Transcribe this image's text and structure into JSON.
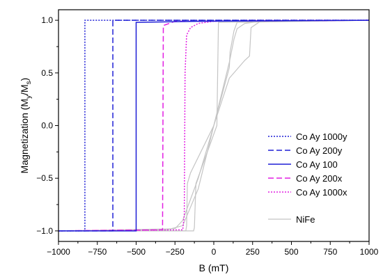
{
  "chart_data": {
    "type": "line",
    "xlabel": "B (mT)",
    "ylabel_main": "Magnetization (M",
    "ylabel_sub1": "y",
    "ylabel_mid": "/M",
    "ylabel_sub2": "s",
    "ylabel_end": ")",
    "xlim": [
      -1000,
      1000
    ],
    "ylim": [
      -1.1,
      1.1
    ],
    "x_ticks": [
      -1000,
      -750,
      -500,
      -250,
      0,
      250,
      500,
      750,
      1000
    ],
    "x_tick_labels": [
      "−1000",
      "−750",
      "−500",
      "−250",
      "0",
      "250",
      "500",
      "750",
      "1000"
    ],
    "y_ticks": [
      -1.0,
      -0.5,
      0.0,
      0.5,
      1.0
    ],
    "y_tick_labels": [
      "−1.0",
      "−0.5",
      "0.0",
      "0.5",
      "1.0"
    ],
    "grid": false,
    "legend_position": "right",
    "series": [
      {
        "name": "Co Ay 1000y",
        "color": "#1f1fd6",
        "dash": "2,2",
        "branches": [
          {
            "x": [
              -1000,
              -830,
              -830,
              1000
            ],
            "y": [
              -1.0,
              -1.0,
              1.0,
              1.0
            ]
          }
        ]
      },
      {
        "name": "Co Ay 200y",
        "color": "#1f1fd6",
        "dash": "8,4",
        "branches": [
          {
            "x": [
              -1000,
              -650,
              -650,
              1000
            ],
            "y": [
              -1.0,
              -1.0,
              1.0,
              1.0
            ]
          }
        ]
      },
      {
        "name": "Co Ay 100",
        "color": "#1f1fd6",
        "dash": "",
        "branches": [
          {
            "x": [
              -1000,
              -500,
              -500,
              -100,
              1000
            ],
            "y": [
              -1.0,
              -1.0,
              0.98,
              0.99,
              1.0
            ]
          }
        ]
      },
      {
        "name": "Co Ay 200x",
        "color": "#e21ee2",
        "dash": "8,4",
        "branches": [
          {
            "x": [
              -1000,
              -330,
              -325,
              -250,
              1000
            ],
            "y": [
              -1.0,
              -0.99,
              0.95,
              0.99,
              1.0
            ]
          }
        ]
      },
      {
        "name": "Co Ay 1000x",
        "color": "#e21ee2",
        "dash": "2,2",
        "branches": [
          {
            "x": [
              -1000,
              -200,
              -190,
              -185,
              -175,
              -150,
              -100,
              0,
              200,
              1000
            ],
            "y": [
              -1.0,
              -0.99,
              -0.85,
              0.5,
              0.86,
              0.93,
              0.97,
              0.99,
              1.0,
              1.0
            ]
          }
        ]
      },
      {
        "name": "NiFe",
        "color": "#c4c4c4",
        "dash": "",
        "branches": [
          {
            "x": [
              -1000,
              -130,
              -125,
              -115,
              20,
              25,
              30,
              1000
            ],
            "y": [
              -1.0,
              -1.0,
              -0.97,
              -0.55,
              0.0,
              0.5,
              0.98,
              1.0
            ]
          },
          {
            "x": [
              -1000,
              -180,
              -175,
              -170,
              -150,
              -100,
              0,
              100,
              105,
              130,
              150,
              1000
            ],
            "y": [
              -1.0,
              -1.0,
              -0.95,
              -0.55,
              -0.45,
              -0.3,
              0.0,
              0.55,
              0.7,
              0.9,
              0.98,
              1.0
            ]
          },
          {
            "x": [
              -1000,
              -250,
              -200,
              -100,
              0,
              100,
              200,
              230,
              240,
              300,
              1000
            ],
            "y": [
              -1.0,
              -0.98,
              -0.9,
              -0.5,
              0.0,
              0.45,
              0.62,
              0.66,
              0.93,
              0.99,
              1.0
            ]
          },
          {
            "x": [
              -1000,
              -300,
              -200,
              -100,
              0,
              100,
              130,
              150,
              200,
              300,
              1000
            ],
            "y": [
              -1.0,
              -0.99,
              -0.95,
              -0.6,
              0.0,
              0.6,
              0.82,
              0.92,
              0.97,
              0.99,
              1.0
            ]
          }
        ]
      }
    ]
  }
}
